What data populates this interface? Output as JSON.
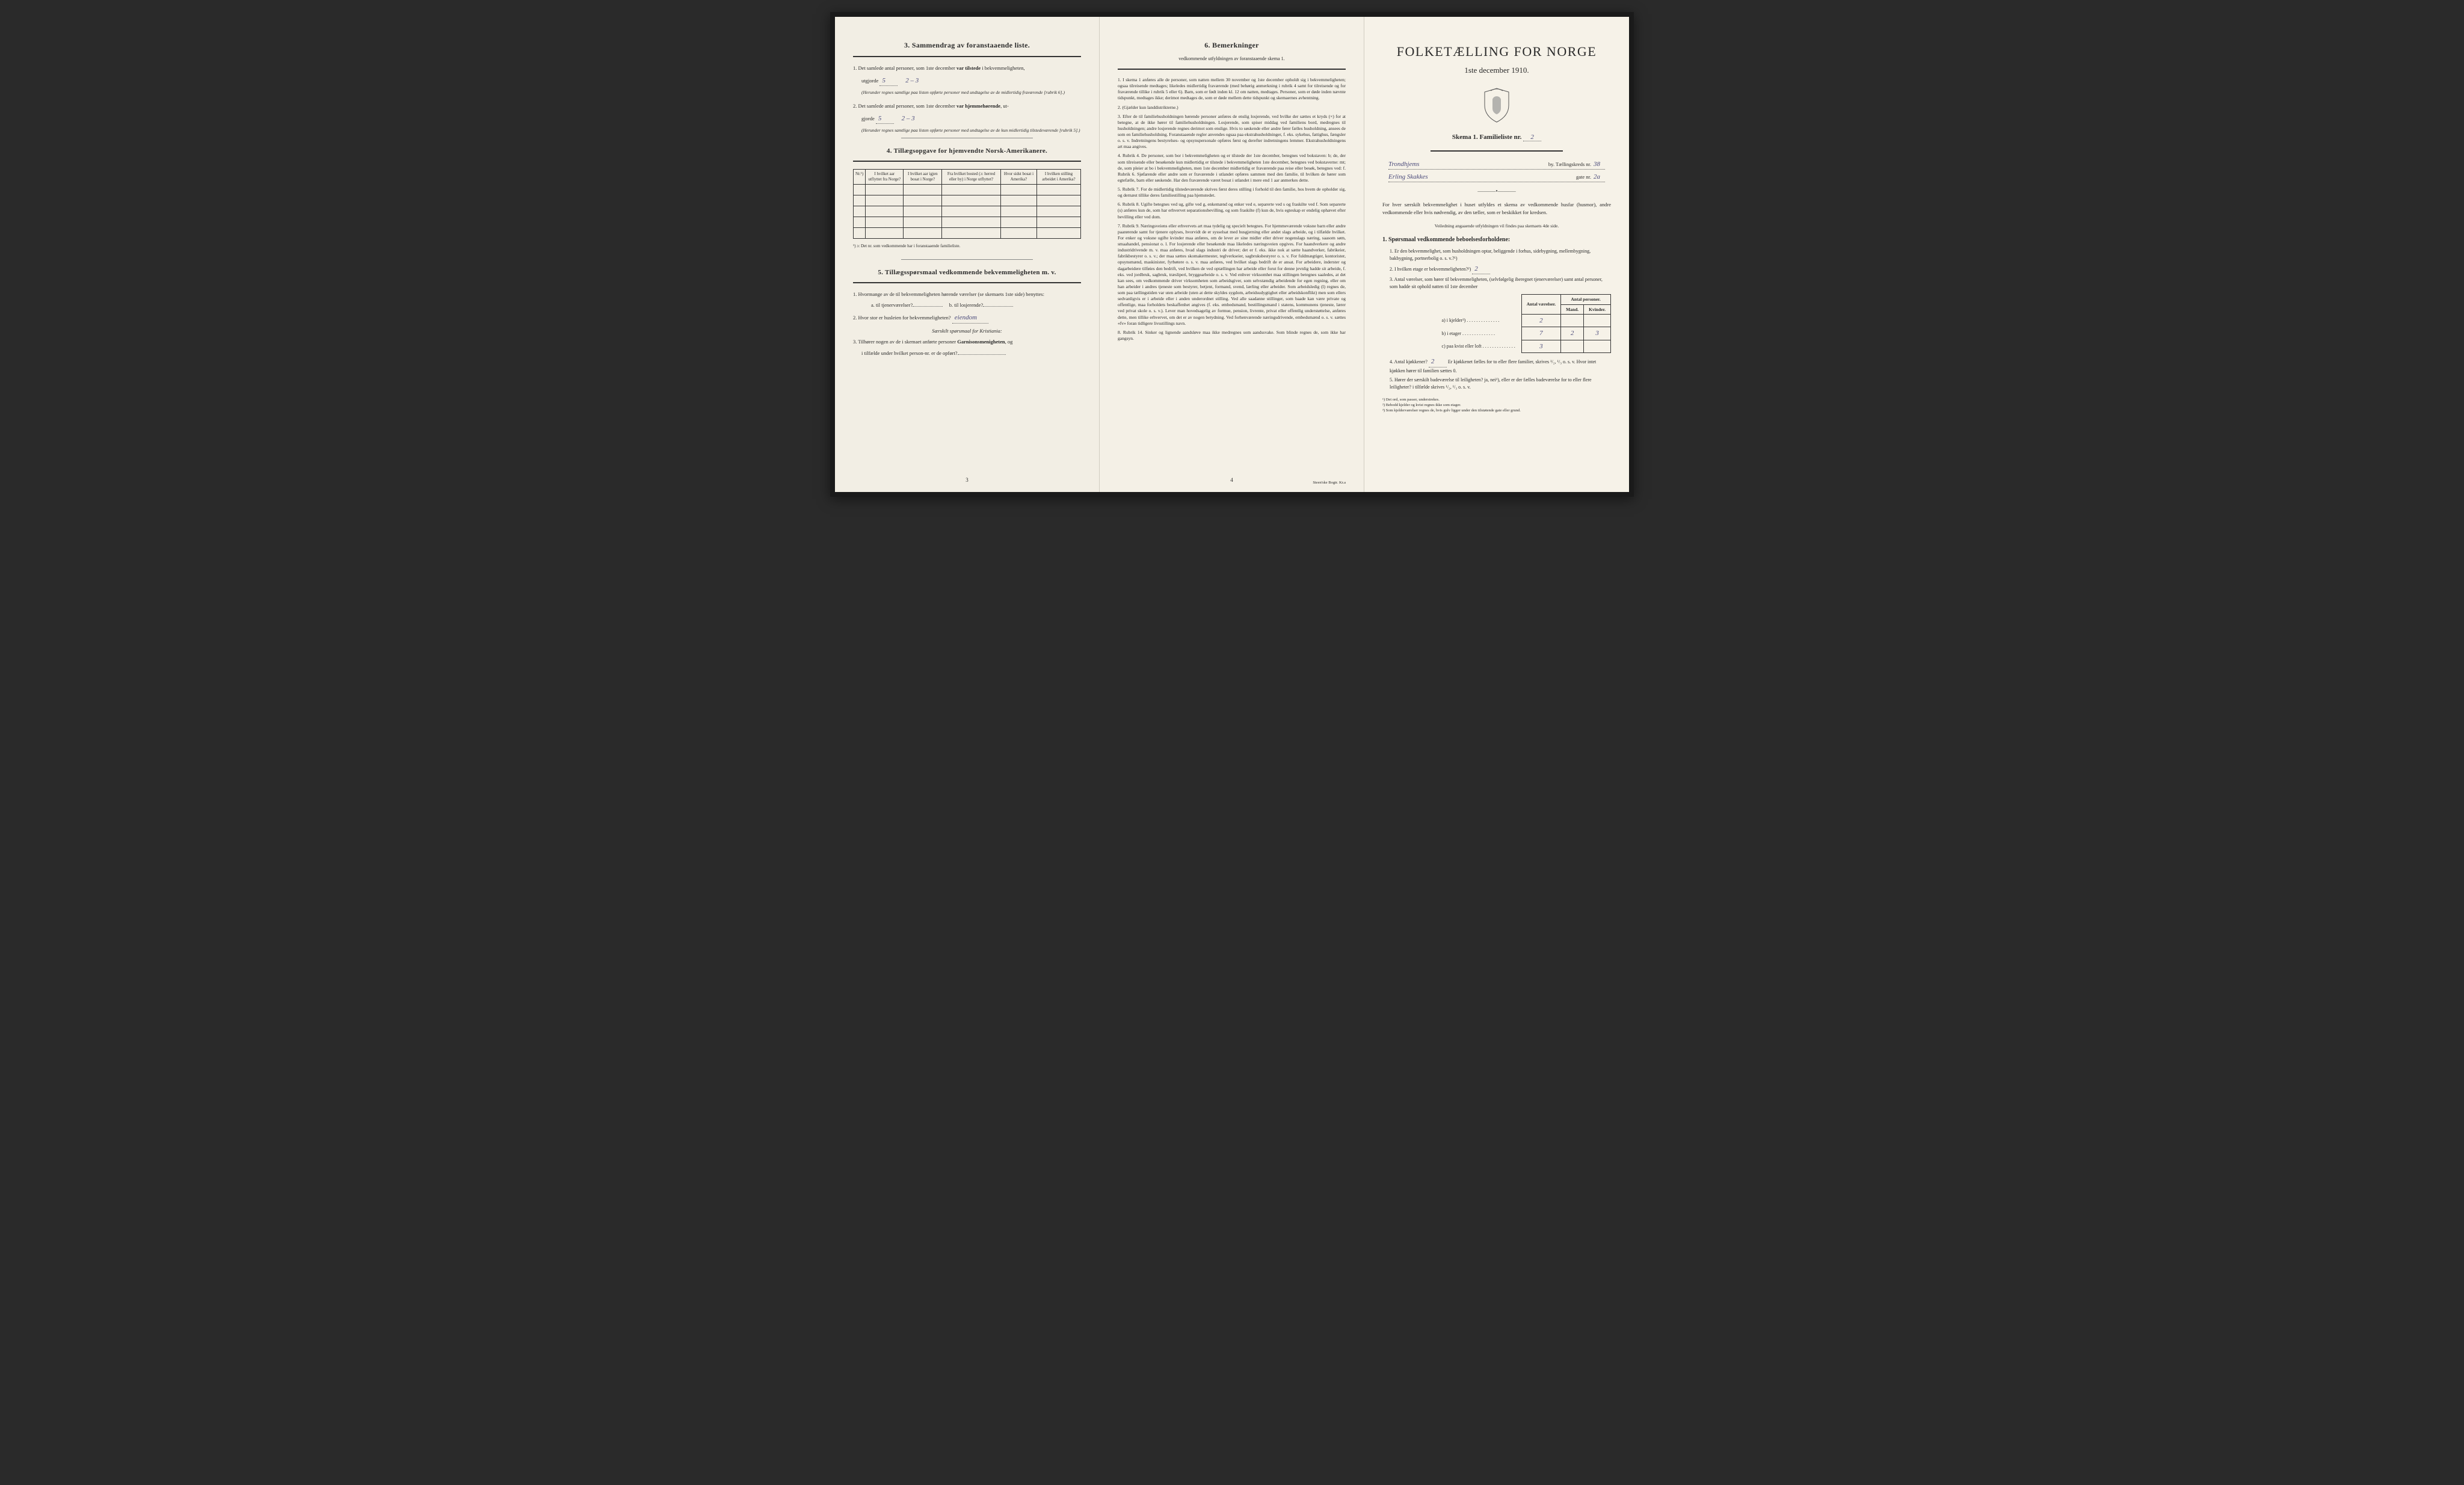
{
  "colors": {
    "paper_left": "#f2eee4",
    "paper_mid": "#f4f0e6",
    "paper_right": "#f6f2e8",
    "ink": "#2a2a2a",
    "handwriting": "#4a4a7a",
    "border": "#333333",
    "background": "#2a2a2a"
  },
  "typography": {
    "body_pt": 8.5,
    "heading_pt": 12,
    "title_pt": 22,
    "dense_pt": 7.5,
    "footnote_pt": 6.5,
    "family": "Georgia / Times New Roman serif",
    "hand_family": "cursive"
  },
  "left": {
    "sec3_title": "3.   Sammendrag av foranstaaende liste.",
    "sec3_item1_pre": "1.  Det samlede antal personer, som 1ste december ",
    "sec3_item1_bold": "var tilstede",
    "sec3_item1_post": " i bekvemmeligheten,",
    "sec3_item1_line2": "utgjorde",
    "sec3_hand1a": "5",
    "sec3_hand1b": "2 – 3",
    "sec3_fine1": "(Herunder regnes samtlige paa listen opførte personer med undtagelse av de midlertidig fraværende [rubrik 6].)",
    "sec3_item2_pre": "2.  Det samlede antal personer, som 1ste december ",
    "sec3_item2_bold": "var hjemmehørende",
    "sec3_item2_post": ", ut-",
    "sec3_item2_line2": "gjorde",
    "sec3_hand2a": "5",
    "sec3_hand2b": "2 – 3",
    "sec3_fine2": "(Herunder regnes samtlige paa listen opførte personer med undtagelse av de kun midlertidig tilstedeværende [rubrik 5].)",
    "sec4_title": "4.   Tillægsopgave for hjemvendte Norsk-Amerikanere.",
    "tbl4_headers": [
      "Nr.¹)",
      "I hvilket aar utflyttet fra Norge?",
      "I hvilket aar igjen bosat i Norge?",
      "Fra hvilket bosted (ɔ: herred eller by) i Norge utflyttet?",
      "Hvor sidst bosat i Amerika?",
      "I hvilken stilling arbeidet i Amerika?"
    ],
    "tbl4_rows": 5,
    "tbl4_note": "¹) ɔ: Det nr. som vedkommende har i foranstaaende familieliste.",
    "sec5_title": "5.   Tillægsspørsmaal vedkommende bekvemmeligheten m. v.",
    "sec5_item1": "1.  Hvormange av de til bekvemmeligheten hørende værelser (se skemaets 1ste side) benyttes:",
    "sec5_item1a": "a.  til tjenerværelser?",
    "sec5_item1b": "b.  til losjerende?",
    "sec5_item2": "2.  Hvor stor er husleien for bekvemmeligheten?",
    "sec5_hand2": "eiendom",
    "sec5_note": "Særskilt spørsmaal for Kristiania:",
    "sec5_item3a": "3.  Tilhører nogen av de i skemaet anførte personer ",
    "sec5_item3b": "Garnisonsmenigheten",
    "sec5_item3c": ", og",
    "sec5_item3d": "i tilfælde under hvilket person-nr. er de opført?",
    "page_num": "3"
  },
  "mid": {
    "title": "6.   Bemerkninger",
    "subtitle": "vedkommende utfyldningen av foranstaaende skema 1.",
    "paras": [
      "1. I skema 1 anføres alle de personer, som natten mellem 30 november og 1ste december opholdt sig i bekvemmeligheten; ogsaa tilreisende medtages; likeledes midlertidig fraværende (med behørig anmerkning i rubrik 4 samt for tilreisende og for fraværende tillike i rubrik 5 eller 6). Barn, som er født inden kl. 12 om natten, medtages. Personer, som er døde inden nævnte tidspunkt, medtages ikke; derimot medtages de, som er døde mellem dette tidspunkt og skemaernes avhentning.",
      "2. (Gjælder kun landdistrikterne.)",
      "3. Efter de til familiehusholdningen hørende personer anføres de enslig losjerende, ved hvilke der sættes et kryds (×) for at betegne, at de ikke hører til familiehusholdningen. Losjerende, som spiser middag ved familiens bord, medregnes til husholdningen; andre losjerende regnes derimot som enslige. Hvis to søskende eller andre fører fælles husholdning, ansees de som en familiehusholdning.    Foranstaaende regler anvendes ogsaa paa ekstrahusholdninger, f. eks. sykehus, fattighus, fængsler o. s. v. Indretningens bestyrelses- og opsynspersonale opføres først og derefter indretningens lemmer. Ekstrahusholdningens art maa angives.",
      "4. Rubrik 4. De personer, som bor i bekvemmeligheten og er tilstede der 1ste december, betegnes ved bokstaven: b; de, der som tilreisende eller besøkende kun midlertidig er tilstede i bekvemmeligheten 1ste december, betegnes ved bokstaverne: mt; de, som pleier at bo i bekvemmeligheten, men 1ste december midlertidig er fraværende paa reise eller besøk, betegnes ved: f.    Rubrik 6. Sjøfarende eller andre som er fraværende i utlandet opføres sammen med den familie, til hvilken de hører som egtefælle, barn eller søskende.    Har den fraværende været bosat i utlandet i mere end 1 aar anmerkes dette.",
      "5. Rubrik 7. For de midlertidig tilstedeværende skrives først deres stilling i forhold til den familie, hos hvem de opholder sig, og dernæst tillike deres familiestilling paa hjemstedet.",
      "6. Rubrik 8. Ugifte betegnes ved ug, gifte ved g, enkemænd og enker ved e, separerte ved s og fraskilte ved f. Som separerte (s) anføres kun de, som har erhvervet separationsbevilling, og som fraskilte (f) kun de, hvis egteskap er endelig ophævet efter bevilling eller ved dom.",
      "7. Rubrik 9. Næringsveiens eller erhvervets art maa tydelig og specielt betegnes.    For hjemmeværende voksne barn eller andre paarørende samt for tjenere oplyses, hvorvidt de er sysselsat med husgjerning eller andet slags arbeide, og i tilfælde hvilket. For enker og voksne ugifte kvinder maa anføres, om de lever av sine midler eller driver nogenslags næring, saasom søm, smaahandel, pensionat o. l.    For losjerende eller besøkende maa likeledes næringsveien opgives.    For haandverkere og andre industridrivende m. v. maa anføres, hvad slags industri de driver; det er f. eks. ikke nok at sætte haandverker, fabrikeier, fabrikbestyrer o. s. v.; der maa sættes skomakermester, teglverkseier, sagbruksbestyrer o. s. v.    For fuldmægtiger, kontorister, opsynsmænd, maskinister, fyrbøtere o. s. v. maa anføres, ved hvilket slags bedrift de er ansat.    For arbeidere, inderster og dagarbeidere tilføies den bedrift, ved hvilken de ved optællingen har arbeide eller forut for denne jevnlig hadde sit arbeide, f. eks. ved jordbruk, sagbruk, træsliperi, bryggearbeide o. s. v.    Ved enhver virksomhet maa stillingen betegnes saaledes, at det kan sees, om vedkommende driver virksomheten som arbeidsgiver, som selvstændig arbeidende for egen regning, eller om han arbeider i andres tjeneste som bestyrer, betjent, formand, svend, lærling eller arbeider.    Som arbeidsledig (l) regnes de, som paa tællingstiden var uten arbeide (uten at dette skyldes sygdom, arbeidsudygtighet eller arbeidskonflikt) men som ellers sedvanligvis er i arbeide eller i anden underordnet stilling.    Ved alle saadanne stillinger, som baade kan være private og offentlige, maa forholdets beskaffenhet angives (f. eks. embedsmand, bestillingsmand i statens, kommunens tjeneste, lærer ved privat skole o. s. v.).    Lever man hovedsagelig av formue, pension, livrente, privat eller offentlig understøttelse, anføres dette, men tillike erhvervet, om det er av nogen betydning.    Ved forhenværende næringsdrivende, embedsmænd o. s. v. sættes «fv» foran tidligere livsstillings navn.",
      "8. Rubrik 14. Sinker og lignende aandsløve maa ikke medregnes som aandssvake. Som blinde regnes de, som ikke har gangsyn."
    ],
    "page_num": "4",
    "imprint": "Steen'ske Bogtr.  Kr.a"
  },
  "right": {
    "title_main": "FOLKETÆLLING FOR NORGE",
    "title_sub": "1ste december 1910.",
    "skema_label": "Skema 1.    Familieliste nr.",
    "skema_hand": "2",
    "line1_hand": "Trondhjems",
    "line1_printed": "by.   Tællingskreds nr.",
    "line1_hand2": "38",
    "line2_hand": "Erling Skakkes",
    "line2_printed": "gate nr.",
    "line2_hand2": "2a",
    "intro": "For hver særskilt bekvemmelighet i huset utfyldes et skema av vedkommende husfar (husmor), andre vedkommende eller hvis nødvendig, av den tæller, som er beskikket for kredsen.",
    "intro_note": "Veiledning angaaende utfyldningen vil findes paa skemaets 4de side.",
    "sec1_title": "1.  Spørsmaal vedkommende beboelsesforholdene:",
    "q1": "1.  Er den bekvemmelighet, som husholdningen optar, beliggende i forhus, sidebygning, mellembygning, bakbygning, portnerbolig o. s. v.?¹)",
    "q2": "2.  I hvilken etage er bekvemmeligheten?²)",
    "q2_hand": "2",
    "q3": "3.  Antal værelser, som hører til bekvemmeligheten, (selvfølgelig iberegnet tjenerværelser) samt antal personer, som hadde sit ophold natten til 1ste december",
    "stats_headers": [
      "Antal værelser.",
      "Antal personer."
    ],
    "stats_subheaders": [
      "Mand.",
      "Kvinder."
    ],
    "stats_rows": [
      {
        "label": "a) i kjelder³)",
        "vaer": "2",
        "mand": "",
        "kvin": ""
      },
      {
        "label": "b) i etager",
        "vaer": "7",
        "mand": "2",
        "kvin": "3"
      },
      {
        "label": "c) paa kvist eller loft",
        "vaer": "3",
        "mand": "",
        "kvin": ""
      }
    ],
    "q4_a": "4.  Antal kjøkkener?",
    "q4_hand": "2",
    "q4_b": "Er kjøkkenet fælles for to eller flere familier, skrives ¹/₂, ¹/₃ o. s. v.  Hvor intet kjøkken hører til familien sættes 0.",
    "q5": "5.  Hører der særskilt badeværelse til leiligheten?  ja,  nei¹),  eller er der fælles badeværelse for to eller flere leiligheter? i tilfælde skrives ¹/₂, ¹/₃ o. s. v.",
    "footnotes": [
      "¹)  Det ord, som passer, understrekes.",
      "²)  Bebodd kjelder og kvist regnes ikke som etager.",
      "³)  Som kjelderværelser regnes de, hvis gulv ligger under den tilstøtende gate eller grund."
    ]
  }
}
